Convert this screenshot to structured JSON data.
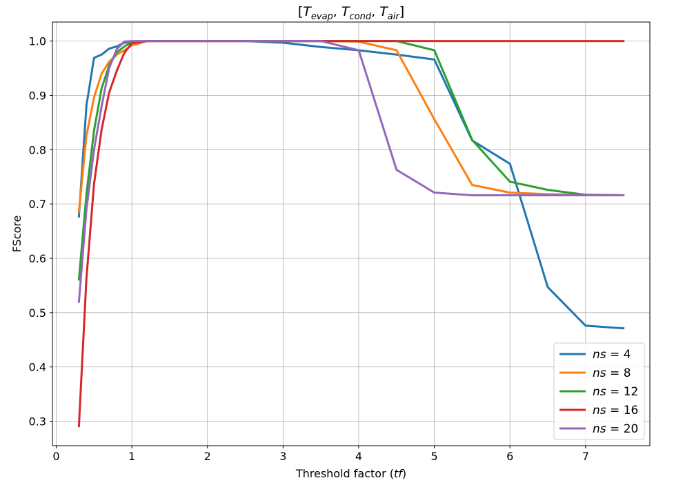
{
  "chart_data": {
    "type": "line",
    "title": {
      "open": "[",
      "parts": [
        {
          "sym": "T",
          "sub": "evap"
        },
        {
          "sym": "T",
          "sub": "cond"
        },
        {
          "sym": "T",
          "sub": "air"
        }
      ],
      "sep": ", ",
      "close": "]"
    },
    "xlabel": {
      "prefix": "Threshold factor (",
      "var": "tf",
      "suffix": ")"
    },
    "ylabel": "FScore",
    "xlim": [
      -0.05,
      7.85
    ],
    "ylim": [
      0.255,
      1.035
    ],
    "xticks": [
      0,
      1,
      2,
      3,
      4,
      5,
      6,
      7
    ],
    "xtick_labels": [
      "0",
      "1",
      "2",
      "3",
      "4",
      "5",
      "6",
      "7"
    ],
    "yticks": [
      0.3,
      0.4,
      0.5,
      0.6,
      0.7,
      0.8,
      0.9,
      1.0
    ],
    "ytick_labels": [
      "0.3",
      "0.4",
      "0.5",
      "0.6",
      "0.7",
      "0.8",
      "0.9",
      "1.0"
    ],
    "grid": true,
    "legend_position": "lower-right",
    "series": [
      {
        "name": "ns = 4",
        "name_var": "ns",
        "name_val": "4",
        "color": "#1f77b4",
        "x": [
          0.3,
          0.4,
          0.5,
          0.6,
          0.7,
          0.8,
          0.9,
          1.0,
          1.2,
          1.5,
          2.0,
          2.5,
          3.0,
          3.5,
          4.0,
          4.5,
          5.0,
          5.5,
          6.0,
          6.5,
          7.0,
          7.5
        ],
        "y": [
          0.677,
          0.881,
          0.969,
          0.975,
          0.986,
          0.99,
          0.997,
          0.999,
          1.0,
          1.0,
          1.0,
          1.0,
          0.997,
          0.989,
          0.983,
          0.975,
          0.966,
          0.817,
          0.774,
          0.547,
          0.476,
          0.471
        ]
      },
      {
        "name": "ns = 8",
        "name_var": "ns",
        "name_val": "8",
        "color": "#ff7f0e",
        "x": [
          0.3,
          0.4,
          0.5,
          0.6,
          0.7,
          0.8,
          0.9,
          1.0,
          1.2,
          1.5,
          2.0,
          2.5,
          3.0,
          3.5,
          4.0,
          4.5,
          5.0,
          5.5,
          6.0,
          6.5,
          7.0,
          7.5
        ],
        "y": [
          0.686,
          0.826,
          0.896,
          0.94,
          0.962,
          0.975,
          0.983,
          0.992,
          1.0,
          1.0,
          1.0,
          1.0,
          1.0,
          1.0,
          0.999,
          0.983,
          0.856,
          0.735,
          0.721,
          0.718,
          0.717,
          0.716
        ]
      },
      {
        "name": "ns = 12",
        "name_var": "ns",
        "name_val": "12",
        "color": "#2ca02c",
        "x": [
          0.3,
          0.4,
          0.5,
          0.6,
          0.7,
          0.8,
          0.9,
          1.0,
          1.2,
          1.5,
          2.0,
          2.5,
          3.0,
          3.5,
          4.0,
          4.5,
          5.0,
          5.5,
          6.0,
          6.5,
          7.0,
          7.5
        ],
        "y": [
          0.561,
          0.718,
          0.835,
          0.913,
          0.955,
          0.979,
          0.99,
          0.998,
          1.0,
          1.0,
          1.0,
          1.0,
          1.0,
          1.0,
          1.0,
          1.0,
          0.983,
          0.818,
          0.741,
          0.726,
          0.717,
          0.716
        ]
      },
      {
        "name": "ns = 16",
        "name_var": "ns",
        "name_val": "16",
        "color": "#d62728",
        "x": [
          0.3,
          0.4,
          0.5,
          0.6,
          0.7,
          0.8,
          0.9,
          1.0,
          1.2,
          1.5,
          2.0,
          2.5,
          3.0,
          3.5,
          4.0,
          4.5,
          5.0,
          5.5,
          6.0,
          6.5,
          7.0,
          7.5
        ],
        "y": [
          0.291,
          0.563,
          0.737,
          0.837,
          0.905,
          0.945,
          0.978,
          0.996,
          1.0,
          1.0,
          1.0,
          1.0,
          1.0,
          1.0,
          1.0,
          1.0,
          1.0,
          1.0,
          1.0,
          1.0,
          1.0,
          1.0
        ]
      },
      {
        "name": "ns = 20",
        "name_var": "ns",
        "name_val": "20",
        "color": "#9467bd",
        "x": [
          0.3,
          0.4,
          0.5,
          0.6,
          0.7,
          0.8,
          0.9,
          1.0,
          1.2,
          1.5,
          2.0,
          2.5,
          3.0,
          3.5,
          4.0,
          4.5,
          5.0,
          5.5,
          6.0,
          6.5,
          7.0,
          7.5
        ],
        "y": [
          0.52,
          0.69,
          0.8,
          0.88,
          0.95,
          0.985,
          0.999,
          1.0,
          1.0,
          1.0,
          1.0,
          1.0,
          1.0,
          1.0,
          0.983,
          0.763,
          0.721,
          0.716,
          0.716,
          0.716,
          0.716,
          0.716
        ]
      }
    ]
  }
}
